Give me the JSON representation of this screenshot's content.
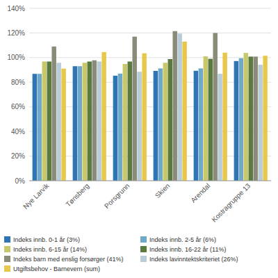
{
  "chart_data": {
    "type": "bar",
    "categories": [
      "Nye Larvik",
      "Tønsberg",
      "Porsgrunn",
      "Skien",
      "Arendal",
      "Kostragruppe 13"
    ],
    "series": [
      {
        "name": "Indeks innb. 0-1 år (3%)",
        "color": "#2E75B6",
        "values": [
          0.868,
          0.93,
          0.853,
          0.892,
          0.893,
          0.972
        ]
      },
      {
        "name": "Indeks innb. 2-5 år (6%)",
        "color": "#70A9C8",
        "values": [
          0.868,
          0.93,
          0.87,
          0.912,
          0.912,
          0.995
        ]
      },
      {
        "name": "Indeks innb. 6-15 år (14%)",
        "color": "#C8C86A",
        "values": [
          0.968,
          0.958,
          0.948,
          0.958,
          1.01,
          1.038
        ]
      },
      {
        "name": "Indeks innb. 16-22 år (11%)",
        "color": "#5A7A40",
        "values": [
          0.968,
          0.968,
          0.968,
          0.988,
          0.99,
          1.008
        ]
      },
      {
        "name": "Indeks barn med enslig forsørger (41%)",
        "color": "#8B8B7A",
        "values": [
          1.09,
          0.978,
          1.17,
          1.215,
          1.2,
          1.008
        ]
      },
      {
        "name": "Indeks lavinntektskriteriet (26%)",
        "color": "#B8CDD8",
        "values": [
          0.958,
          0.968,
          0.885,
          1.195,
          0.868,
          0.942
        ]
      },
      {
        "name": "Utgiftsbehov - Barnevern (sum)",
        "color": "#E8C84A",
        "values": [
          0.91,
          1.045,
          1.035,
          1.13,
          1.04,
          1.015
        ]
      }
    ],
    "ylim": [
      0.0,
      1.4
    ],
    "yticks": [
      {
        "value": 0.0,
        "label": "0%"
      },
      {
        "value": 0.2,
        "label": "20%"
      },
      {
        "value": 0.4,
        "label": "40%"
      },
      {
        "value": 0.6,
        "label": "60%"
      },
      {
        "value": 0.8,
        "label": "80%"
      },
      {
        "value": 1.0,
        "label": "100%"
      },
      {
        "value": 1.2,
        "label": "120%"
      },
      {
        "value": 1.4,
        "label": "140%"
      }
    ],
    "grid": true,
    "legend": "bottom"
  }
}
